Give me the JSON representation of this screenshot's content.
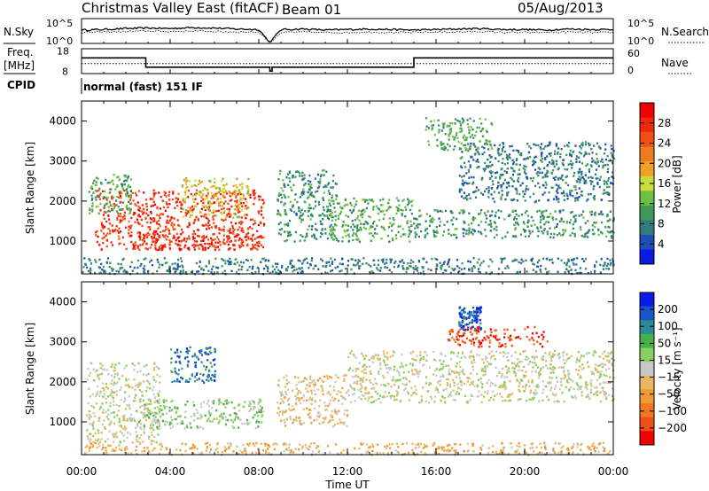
{
  "header": {
    "station": "Christmas Valley East (fitACF)",
    "beam": "Beam 01",
    "date": "05/Aug/2013"
  },
  "strip_labels": {
    "nsky": "N.Sky",
    "nsearch": "N.Search",
    "freq_line1": "Freq.",
    "freq_line2": "[MHz]",
    "nave": "Nave",
    "cpid": "CPID",
    "cpid_value": "normal (fast) 151 IF"
  },
  "axes": {
    "xlabel": "Time UT",
    "ylabel": "Slant Range [km]",
    "x_ticks": [
      "00:00",
      "04:00",
      "08:00",
      "12:00",
      "16:00",
      "20:00",
      "00:00"
    ],
    "y_ticks": [
      "1000",
      "2000",
      "3000",
      "4000"
    ],
    "y_tick_values": [
      1000,
      2000,
      3000,
      4000
    ],
    "xlim_hours": [
      0,
      24
    ],
    "ylim_km": [
      180,
      4500
    ]
  },
  "noise_axis": {
    "left_ticks": [
      "10^5",
      "10^0"
    ],
    "right_ticks": [
      "10^5",
      "10^0"
    ]
  },
  "freq_axis": {
    "left_ticks": [
      "18",
      "8"
    ],
    "left_values": [
      18,
      8
    ],
    "right_ticks": [
      "60",
      "0"
    ],
    "right_values": [
      60,
      0
    ],
    "ylim_mhz": [
      7,
      19
    ]
  },
  "colorbars": {
    "power": {
      "label": "Power [dB]",
      "ticks": [
        "28",
        "24",
        "20",
        "16",
        "12",
        "8",
        "4"
      ],
      "colors": [
        "#0a1be6",
        "#1f4fb4",
        "#317c7c",
        "#3f9a5a",
        "#6ec044",
        "#c8dc3a",
        "#f0a028",
        "#f07a20",
        "#f05018",
        "#f02810",
        "#f00000"
      ]
    },
    "velocity": {
      "label": "Velocity [m s⁻¹]",
      "ticks": [
        "200",
        "100",
        "50",
        "15",
        "−15",
        "−50",
        "−100",
        "−200"
      ],
      "colors": [
        "#0a1be6",
        "#1a55c8",
        "#2a8a9a",
        "#4ab04a",
        "#8ad060",
        "#c8c8c8",
        "#e8b860",
        "#f09a30",
        "#f07820",
        "#f05018",
        "#f00000"
      ]
    }
  },
  "chart_data": [
    {
      "type": "line",
      "title": "N.Sky / N.Search",
      "x_hours": [
        0,
        1,
        2,
        3,
        4,
        5,
        6,
        7,
        8,
        8.5,
        9,
        10,
        11,
        12,
        13,
        14,
        15,
        16,
        17,
        18,
        19,
        20,
        21,
        22,
        23,
        24
      ],
      "series": [
        {
          "name": "N.Sky",
          "values": [
            2.7,
            2.8,
            3.0,
            3.1,
            3.0,
            3.2,
            3.1,
            2.9,
            2.8,
            0.2,
            2.8,
            2.9,
            2.7,
            2.8,
            2.9,
            2.8,
            2.7,
            2.8,
            2.9,
            3.0,
            2.8,
            2.8,
            2.7,
            2.9,
            2.8,
            2.8
          ]
        },
        {
          "name": "N.Search",
          "values": [
            2.2,
            2.3,
            2.4,
            2.5,
            2.4,
            2.5,
            2.4,
            2.3,
            2.3,
            0.2,
            2.2,
            2.3,
            2.2,
            2.2,
            2.3,
            2.2,
            2.2,
            2.3,
            2.3,
            2.4,
            2.2,
            2.2,
            2.2,
            2.3,
            2.2,
            2.2
          ]
        }
      ]
    },
    {
      "type": "line",
      "title": "Freq. / Nave",
      "series": [
        {
          "name": "Freq.",
          "x_hours": [
            0,
            2.9,
            2.9,
            8.5,
            8.5,
            8.6,
            8.6,
            15.0,
            15.0,
            24
          ],
          "values": [
            14.6,
            14.6,
            10.1,
            10.1,
            8.2,
            8.2,
            10.1,
            10.1,
            14.6,
            14.6
          ]
        },
        {
          "name": "Nave",
          "x_hours": [
            0,
            24
          ],
          "values": [
            24,
            24
          ]
        }
      ]
    },
    {
      "type": "heatmap",
      "title": "Power [dB]",
      "x": "Time UT (hours)",
      "y": "Slant Range [km]",
      "regions": [
        {
          "t0": 0.6,
          "t1": 8.2,
          "r0": 800,
          "r1": 2300,
          "value": 26
        },
        {
          "t0": 0.3,
          "t1": 2.2,
          "r0": 1700,
          "r1": 2700,
          "value": 10
        },
        {
          "t0": 2.5,
          "t1": 8.2,
          "r0": 800,
          "r1": 1200,
          "value": 26
        },
        {
          "t0": 4.5,
          "t1": 7.5,
          "r0": 1600,
          "r1": 2600,
          "value": 16
        },
        {
          "t0": 8.8,
          "t1": 11.5,
          "r0": 1000,
          "r1": 2800,
          "value": 8
        },
        {
          "t0": 11.0,
          "t1": 15.0,
          "r0": 1000,
          "r1": 2100,
          "value": 10
        },
        {
          "t0": 0,
          "t1": 24,
          "r0": 200,
          "r1": 600,
          "value": 6
        },
        {
          "t0": 15.0,
          "t1": 24,
          "r0": 1100,
          "r1": 1800,
          "value": 8
        },
        {
          "t0": 17.0,
          "t1": 24,
          "r0": 2000,
          "r1": 3500,
          "value": 6
        },
        {
          "t0": 15.5,
          "t1": 18.5,
          "r0": 3300,
          "r1": 4100,
          "value": 10
        }
      ]
    },
    {
      "type": "heatmap",
      "title": "Velocity [m s⁻¹]",
      "x": "Time UT (hours)",
      "y": "Slant Range [km]",
      "regions": [
        {
          "t0": 0.2,
          "t1": 3.5,
          "r0": 500,
          "r1": 2500,
          "value": 0
        },
        {
          "t0": 2.5,
          "t1": 8.2,
          "r0": 850,
          "r1": 1600,
          "value": 40
        },
        {
          "t0": 4.0,
          "t1": 6.0,
          "r0": 2000,
          "r1": 2900,
          "value": 150
        },
        {
          "t0": 8.8,
          "t1": 12.0,
          "r0": 900,
          "r1": 2200,
          "value": -40
        },
        {
          "t0": 12.0,
          "t1": 24,
          "r0": 1500,
          "r1": 2800,
          "value": 0
        },
        {
          "t0": 17.0,
          "t1": 18.0,
          "r0": 3300,
          "r1": 3900,
          "value": 180
        },
        {
          "t0": 16.5,
          "t1": 21.0,
          "r0": 2900,
          "r1": 3400,
          "value": -180
        },
        {
          "t0": 0,
          "t1": 24,
          "r0": 200,
          "r1": 500,
          "value": -60
        }
      ]
    }
  ]
}
